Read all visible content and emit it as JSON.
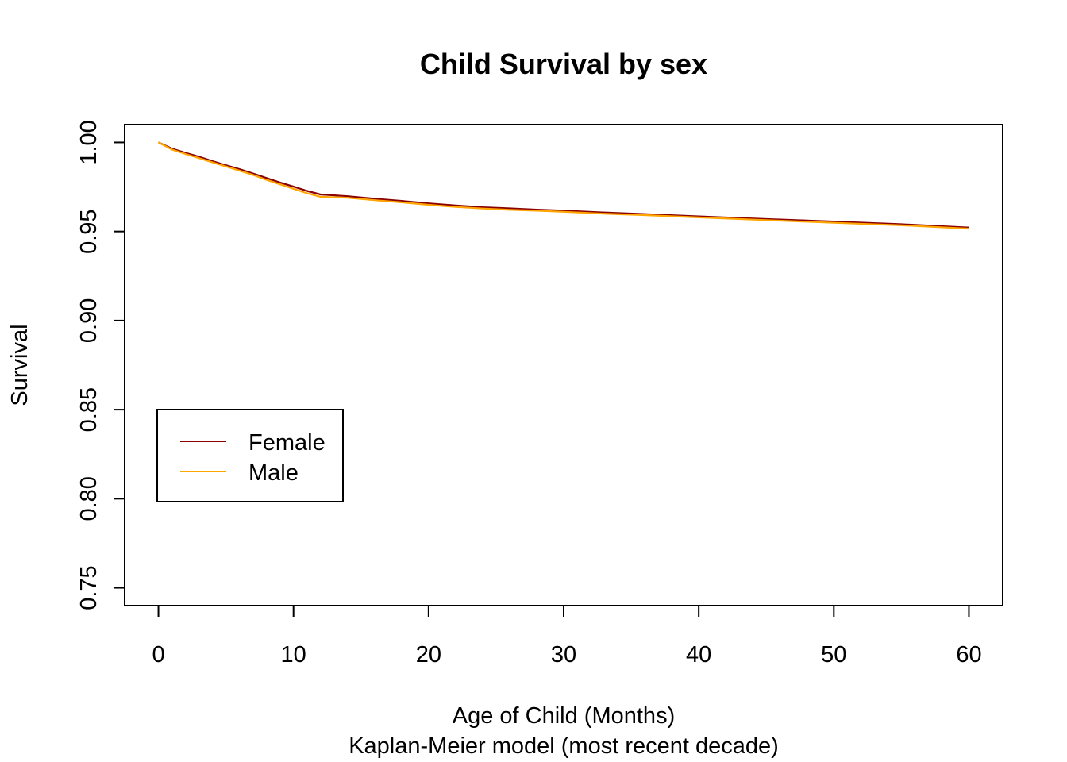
{
  "chart_data": {
    "type": "line",
    "title": "Child Survival by sex",
    "xlabel": "Age of Child (Months)",
    "subtitle": "Kaplan-Meier model (most recent decade)",
    "ylabel": "Survival",
    "xlim": [
      -2.5,
      62.5
    ],
    "ylim": [
      0.74,
      1.01
    ],
    "x_ticks": [
      0,
      10,
      20,
      30,
      40,
      50,
      60
    ],
    "y_ticks": [
      0.75,
      0.8,
      0.85,
      0.9,
      0.95,
      1.0
    ],
    "x_tick_labels": [
      "0",
      "10",
      "20",
      "30",
      "40",
      "50",
      "60"
    ],
    "y_tick_labels": [
      "0.75",
      "0.80",
      "0.85",
      "0.90",
      "0.95",
      "1.00"
    ],
    "legend_position": "left",
    "grid": false,
    "series": [
      {
        "name": "Female",
        "color": "#8B0000",
        "x": [
          0,
          1,
          2,
          3,
          4,
          5,
          6,
          7,
          8,
          9,
          10,
          11,
          12,
          14,
          16,
          18,
          20,
          22,
          24,
          26,
          28,
          30,
          33,
          36,
          40,
          45,
          50,
          55,
          60
        ],
        "y": [
          1.0,
          0.9965,
          0.9942,
          0.992,
          0.9895,
          0.9872,
          0.985,
          0.9826,
          0.98,
          0.9775,
          0.9752,
          0.9728,
          0.9708,
          0.9698,
          0.9684,
          0.9672,
          0.9658,
          0.9646,
          0.9636,
          0.963,
          0.9623,
          0.9617,
          0.9607,
          0.9598,
          0.9585,
          0.957,
          0.9556,
          0.9541,
          0.9522
        ]
      },
      {
        "name": "Male",
        "color": "#FFA500",
        "x": [
          0,
          1,
          2,
          3,
          4,
          5,
          6,
          7,
          8,
          9,
          10,
          11,
          12,
          14,
          16,
          18,
          20,
          22,
          24,
          26,
          28,
          30,
          33,
          36,
          40,
          45,
          50,
          55,
          60
        ],
        "y": [
          1.0,
          0.996,
          0.9935,
          0.9912,
          0.9888,
          0.9865,
          0.9842,
          0.9818,
          0.979,
          0.9765,
          0.974,
          0.9715,
          0.9695,
          0.9689,
          0.9676,
          0.9664,
          0.965,
          0.9638,
          0.9629,
          0.9622,
          0.9617,
          0.9611,
          0.96,
          0.9592,
          0.9579,
          0.9564,
          0.9549,
          0.9535,
          0.9516
        ]
      }
    ]
  }
}
